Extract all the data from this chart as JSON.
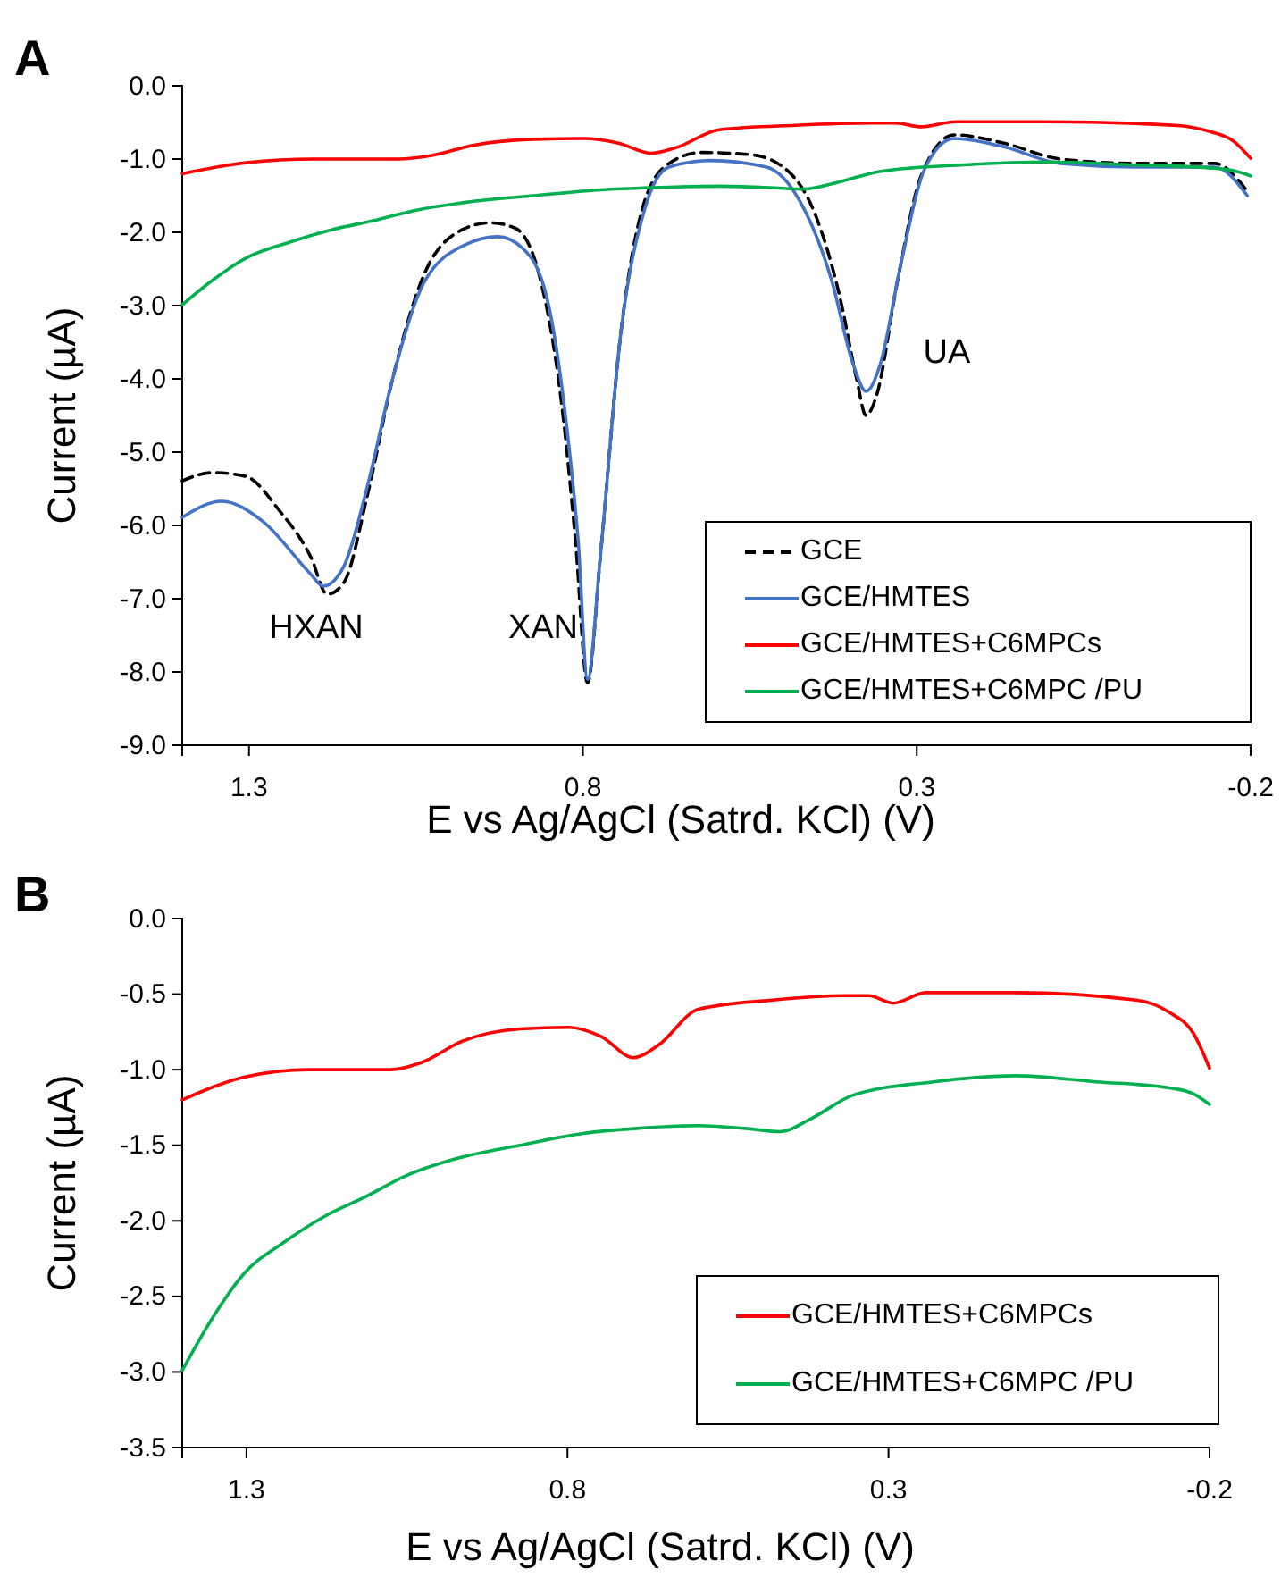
{
  "chart_data": [
    {
      "type": "line",
      "title": "A",
      "xlabel": "E vs Ag/AgCl (Satrd. KCl) (V)",
      "ylabel": "Current (µA)",
      "xlim": [
        1.4,
        -0.2
      ],
      "xticks": [
        1.3,
        0.8,
        0.3,
        -0.2
      ],
      "ylim": [
        -9,
        0
      ],
      "yticks": [
        {
          "value": 0,
          "label": "0.0"
        },
        {
          "value": -1,
          "label": "-1.0"
        },
        {
          "value": -2,
          "label": "-2.0"
        },
        {
          "value": -3,
          "label": "-3.0"
        },
        {
          "value": -4,
          "label": "-4.0"
        },
        {
          "value": -5,
          "label": "-5.0"
        },
        {
          "value": -6,
          "label": "-6.0"
        },
        {
          "value": -7,
          "label": "-7.0"
        },
        {
          "value": -8,
          "label": "-8.0"
        },
        {
          "value": -9,
          "label": "-9.0"
        }
      ],
      "legend": "bottom right",
      "marker": "none",
      "annotations": [
        "HXAN",
        "XAN",
        "UA"
      ],
      "series": [
        {
          "name": "GCE",
          "color": "#000000",
          "line_style": "dashed",
          "x": [
            1.4,
            1.354,
            1.305,
            1.256,
            1.207,
            1.183,
            1.158,
            1.122,
            1.085,
            1.037,
            0.988,
            0.939,
            0.902,
            0.866,
            0.829,
            0.811,
            0.793,
            0.774,
            0.744,
            0.707,
            0.671,
            0.622,
            0.549,
            0.5,
            0.451,
            0.415,
            0.39,
            0.376,
            0.36,
            0.329,
            0.293,
            0.244,
            0.171,
            0.085,
            -0.037,
            -0.146,
            -0.195
          ],
          "values": [
            -5.39,
            -5.28,
            -5.33,
            -5.78,
            -6.44,
            -6.94,
            -6.78,
            -5.56,
            -4.0,
            -2.56,
            -2.0,
            -1.87,
            -1.94,
            -2.56,
            -4.56,
            -6.22,
            -8.15,
            -6.44,
            -3.44,
            -1.56,
            -1.06,
            -0.91,
            -0.94,
            -1.11,
            -1.78,
            -2.89,
            -4.0,
            -4.5,
            -4.22,
            -2.67,
            -1.22,
            -0.67,
            -0.78,
            -1.0,
            -1.06,
            -1.06,
            -1.44
          ]
        },
        {
          "name": "GCE/HMTES",
          "color": "#4472c4",
          "line_style": "solid",
          "x": [
            1.4,
            1.341,
            1.28,
            1.207,
            1.189,
            1.158,
            1.122,
            1.085,
            1.037,
            0.976,
            0.927,
            0.89,
            0.854,
            0.824,
            0.807,
            0.793,
            0.774,
            0.744,
            0.707,
            0.671,
            0.61,
            0.525,
            0.476,
            0.427,
            0.396,
            0.376,
            0.354,
            0.324,
            0.287,
            0.244,
            0.171,
            0.085,
            -0.037,
            -0.146,
            -0.195
          ],
          "values": [
            -5.89,
            -5.67,
            -5.94,
            -6.67,
            -6.83,
            -6.56,
            -5.44,
            -4.0,
            -2.67,
            -2.17,
            -2.06,
            -2.22,
            -2.89,
            -4.67,
            -6.22,
            -8.1,
            -6.44,
            -3.44,
            -1.67,
            -1.11,
            -1.02,
            -1.11,
            -1.56,
            -2.67,
            -3.78,
            -4.17,
            -3.78,
            -2.44,
            -1.11,
            -0.72,
            -0.83,
            -1.06,
            -1.11,
            -1.11,
            -1.5
          ]
        },
        {
          "name": "GCE/HMTES+C6MPCs",
          "color": "#ff0000",
          "line_style": "solid",
          "x": [
            1.4,
            1.304,
            1.203,
            1.076,
            1.026,
            0.963,
            0.874,
            0.798,
            0.748,
            0.697,
            0.659,
            0.596,
            0.482,
            0.369,
            0.331,
            0.293,
            0.242,
            0.103,
            -0.086,
            -0.137,
            -0.175,
            -0.2
          ],
          "values": [
            -1.2,
            -1.05,
            -1.0,
            -1.0,
            -0.95,
            -0.81,
            -0.73,
            -0.72,
            -0.78,
            -0.92,
            -0.84,
            -0.6,
            -0.54,
            -0.51,
            -0.51,
            -0.56,
            -0.49,
            -0.49,
            -0.54,
            -0.62,
            -0.76,
            -0.99
          ]
        },
        {
          "name": "GCE/HMTES+C6MPC /PU",
          "color": "#00b050",
          "line_style": "solid",
          "x": [
            1.4,
            1.354,
            1.304,
            1.241,
            1.178,
            1.114,
            1.051,
            0.975,
            0.874,
            0.773,
            0.697,
            0.596,
            0.52,
            0.469,
            0.419,
            0.356,
            0.23,
            0.103,
            -0.023,
            -0.137,
            -0.175,
            -0.2
          ],
          "values": [
            -2.99,
            -2.65,
            -2.35,
            -2.14,
            -1.97,
            -1.84,
            -1.7,
            -1.59,
            -1.5,
            -1.42,
            -1.39,
            -1.37,
            -1.39,
            -1.41,
            -1.32,
            -1.17,
            -1.08,
            -1.04,
            -1.08,
            -1.12,
            -1.16,
            -1.23
          ]
        }
      ]
    },
    {
      "type": "line",
      "title": "B",
      "xlabel": "E vs Ag/AgCl (Satrd. KCl) (V)",
      "ylabel": "Current (µA)",
      "xlim": [
        1.4,
        -0.2
      ],
      "xticks": [
        1.3,
        0.8,
        0.3,
        -0.2
      ],
      "ylim": [
        -3.5,
        0
      ],
      "yticks": [
        {
          "value": 0,
          "label": "0.0"
        },
        {
          "value": -0.5,
          "label": "-0.5"
        },
        {
          "value": -1,
          "label": "-1.0"
        },
        {
          "value": -1.5,
          "label": "-1.5"
        },
        {
          "value": -2,
          "label": "-2.0"
        },
        {
          "value": -2.5,
          "label": "-2.5"
        },
        {
          "value": -3,
          "label": "-3.0"
        },
        {
          "value": -3.5,
          "label": "-3.5"
        }
      ],
      "legend": "bottom right",
      "marker": "none",
      "series": [
        {
          "name": "GCE/HMTES+C6MPCs",
          "color": "#ff0000",
          "line_style": "solid",
          "x": [
            1.4,
            1.304,
            1.203,
            1.076,
            1.026,
            0.963,
            0.874,
            0.798,
            0.748,
            0.697,
            0.659,
            0.596,
            0.482,
            0.369,
            0.331,
            0.293,
            0.242,
            0.103,
            -0.086,
            -0.137,
            -0.175,
            -0.2
          ],
          "values": [
            -1.2,
            -1.05,
            -1.0,
            -1.0,
            -0.95,
            -0.81,
            -0.73,
            -0.72,
            -0.78,
            -0.92,
            -0.84,
            -0.6,
            -0.54,
            -0.51,
            -0.51,
            -0.56,
            -0.49,
            -0.49,
            -0.54,
            -0.62,
            -0.76,
            -0.99
          ]
        },
        {
          "name": "GCE/HMTES+C6MPC /PU",
          "color": "#00b050",
          "line_style": "solid",
          "x": [
            1.4,
            1.354,
            1.304,
            1.241,
            1.178,
            1.114,
            1.051,
            0.975,
            0.874,
            0.773,
            0.697,
            0.596,
            0.52,
            0.469,
            0.419,
            0.356,
            0.23,
            0.103,
            -0.023,
            -0.137,
            -0.175,
            -0.2
          ],
          "values": [
            -2.99,
            -2.65,
            -2.35,
            -2.14,
            -1.97,
            -1.84,
            -1.7,
            -1.59,
            -1.5,
            -1.42,
            -1.39,
            -1.37,
            -1.39,
            -1.41,
            -1.32,
            -1.17,
            -1.08,
            -1.04,
            -1.08,
            -1.12,
            -1.16,
            -1.23
          ]
        }
      ]
    }
  ]
}
